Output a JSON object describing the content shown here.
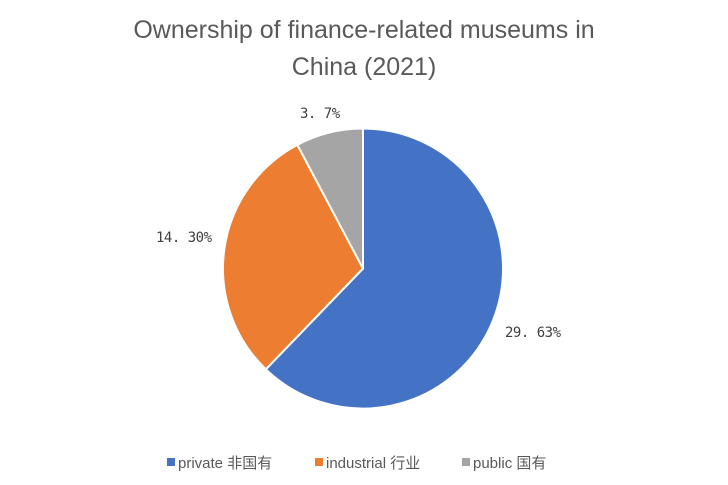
{
  "chart_data": {
    "type": "pie",
    "title": "Ownership of finance-related museums in China (2021)",
    "title_lines": [
      "Ownership of finance-related museums in",
      "China (2021)"
    ],
    "categories": [
      "private 非国有",
      "industrial 行业",
      "public 国有"
    ],
    "values": [
      29.63,
      14.3,
      3.7
    ],
    "data_labels": [
      "29. 63%",
      "14. 30%",
      "3. 7%"
    ],
    "colors": [
      "#4472C4",
      "#ED7D31",
      "#A5A5A5"
    ],
    "start_angle_deg": 0,
    "direction": "clockwise",
    "legend_position": "bottom"
  },
  "legend": {
    "items": [
      {
        "label": "private 非国有",
        "color": "#4472C4"
      },
      {
        "label": "industrial 行业",
        "color": "#ED7D31"
      },
      {
        "label": "public 国有",
        "color": "#A5A5A5"
      }
    ]
  }
}
